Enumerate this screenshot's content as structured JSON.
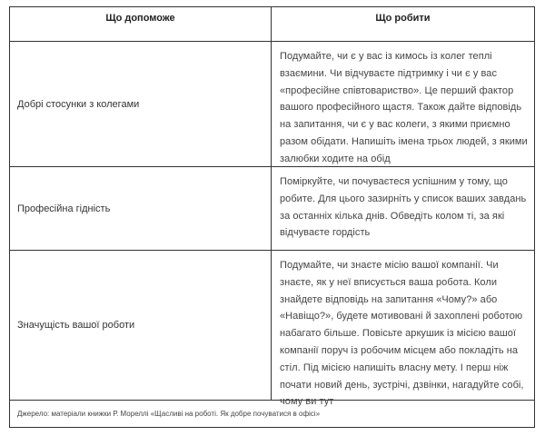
{
  "headers": [
    "Що допоможе",
    "Що робити"
  ],
  "rows": [
    {
      "factor": "Добрі стосунки з колегами",
      "action": "Подумайте, чи є у вас із кимось із колег теплі взаємини. Чи відчуваєте підтримку і чи є у вас «професійне співтовариство». Це перший фактор вашого професійного щастя. Також дайте відповідь на запитання, чи є у вас колеги, з якими приємно разом обідати. Напишіть імена трьох людей, з якими залюбки ходите на обід"
    },
    {
      "factor": "Професійна гідність",
      "action": "Поміркуйте, чи почуваєтеся успішним у тому, що робите. Для цього зазирніть у список ваших завдань за останніх кілька днів. Обведіть колом ті, за які відчуваєте гордість"
    },
    {
      "factor": "Значущість вашої роботи",
      "action": "Подумайте, чи знаєте місію вашої компанії. Чи знаєте, як у неї вписується ваша робота. Коли знайдете відповідь на запитання «Чому?» або «Навіщо?», будете мотивовані й захоплені роботою набагато більше. Повісьте аркушик із місією вашої компанії поруч із робочим місцем або покладіть на стіл. Під місією напишіть власну мету. І перш ніж почати новий день, зустрічі, дзвінки, нагадуйте собі, чому ви тут"
    }
  ],
  "source": "Джерело: матеріали книжки Р. Мореллі «Щасливі на роботі. Як добре почуватися в офісі»"
}
